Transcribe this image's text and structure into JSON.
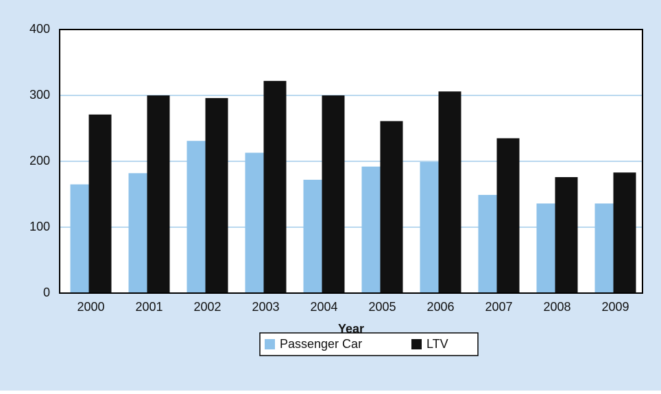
{
  "chart_data": {
    "type": "bar",
    "x_label": "Year",
    "categories": [
      "2000",
      "2001",
      "2002",
      "2003",
      "2004",
      "2005",
      "2006",
      "2007",
      "2008",
      "2009"
    ],
    "series": [
      {
        "name": "Passenger Car",
        "color": "#8ec2ea",
        "values": [
          165,
          182,
          231,
          213,
          172,
          192,
          199,
          149,
          136,
          136
        ]
      },
      {
        "name": "LTV",
        "color": "#111111",
        "values": [
          271,
          300,
          296,
          322,
          300,
          261,
          306,
          235,
          176,
          183
        ]
      }
    ],
    "ylim": [
      0,
      400
    ],
    "yticks": [
      0,
      100,
      200,
      300,
      400
    ],
    "grid": true
  }
}
